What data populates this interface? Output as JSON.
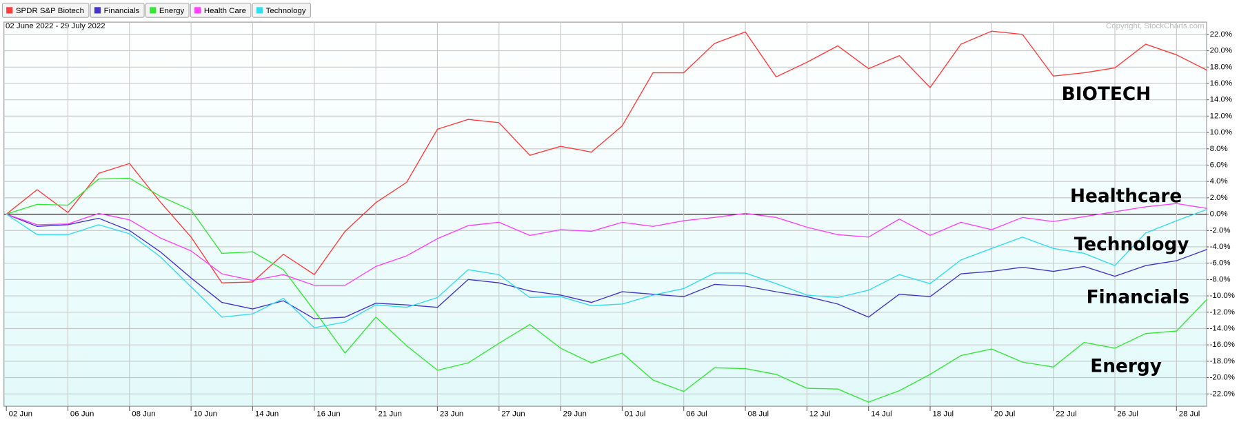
{
  "chart_data": {
    "type": "line",
    "date_range": "02 June 2022 - 29 July 2022",
    "copyright": "Copyright, StockCharts.com",
    "annotations": [
      "BIOTECH",
      "Healthcare",
      "Technology",
      "Financials",
      "Energy"
    ],
    "categories": [
      "02 Jun",
      null,
      "06 Jun",
      null,
      "08 Jun",
      null,
      "10 Jun",
      null,
      "14 Jun",
      null,
      "16 Jun",
      null,
      "21 Jun",
      null,
      "23 Jun",
      null,
      "27 Jun",
      null,
      "29 Jun",
      null,
      "01 Jul",
      null,
      "06 Jul",
      null,
      "08 Jul",
      null,
      "12 Jul",
      null,
      "14 Jul",
      null,
      "18 Jul",
      null,
      "20 Jul",
      null,
      "22 Jul",
      null,
      "26 Jul",
      null,
      "28 Jul",
      null
    ],
    "series": [
      {
        "name": "SPDR S&P Biotech",
        "color": "#ff3b3b",
        "values": [
          0,
          3.0,
          0.2,
          5.0,
          6.2,
          1.5,
          -2.8,
          -8.4,
          -8.3,
          -4.9,
          -7.4,
          -2.1,
          1.4,
          3.9,
          10.4,
          11.6,
          11.2,
          7.2,
          8.3,
          7.6,
          10.8,
          17.3,
          17.3,
          20.9,
          22.3,
          16.8,
          18.6,
          20.6,
          17.8,
          19.4,
          15.5,
          20.8,
          22.4,
          22.0,
          16.9,
          17.3,
          17.9,
          20.8,
          19.5,
          17.6
        ]
      },
      {
        "name": "Financials",
        "color": "#4433cc",
        "values": [
          0,
          -1.5,
          -1.3,
          -0.5,
          -2.0,
          -4.6,
          -7.8,
          -10.8,
          -11.6,
          -10.6,
          -12.8,
          -12.6,
          -10.9,
          -11.1,
          -11.4,
          -8.0,
          -8.4,
          -9.4,
          -9.9,
          -10.8,
          -9.5,
          -9.8,
          -10.1,
          -8.6,
          -8.8,
          -9.5,
          -10.1,
          -11.0,
          -12.6,
          -9.8,
          -10.1,
          -7.3,
          -7.0,
          -6.5,
          -7.0,
          -6.4,
          -7.6,
          -6.3,
          -5.7,
          -4.3
        ]
      },
      {
        "name": "Energy",
        "color": "#33e833",
        "values": [
          0,
          1.2,
          1.1,
          4.3,
          4.4,
          2.2,
          0.5,
          -4.8,
          -4.6,
          -6.8,
          -11.8,
          -17.0,
          -12.6,
          -16.1,
          -19.1,
          -18.2,
          -15.8,
          -13.5,
          -16.4,
          -18.2,
          -17.0,
          -20.3,
          -21.7,
          -18.8,
          -18.9,
          -19.6,
          -21.3,
          -21.4,
          -23.0,
          -21.6,
          -19.6,
          -17.3,
          -16.5,
          -18.1,
          -18.7,
          -15.7,
          -16.4,
          -14.6,
          -14.3,
          -10.4
        ]
      },
      {
        "name": "Health Care",
        "color": "#ff40ff",
        "values": [
          0,
          -1.3,
          -1.2,
          0.1,
          -0.7,
          -2.9,
          -4.5,
          -7.3,
          -8.1,
          -7.4,
          -8.7,
          -8.7,
          -6.4,
          -5.1,
          -3.0,
          -1.4,
          -1.0,
          -2.6,
          -1.9,
          -2.1,
          -1.0,
          -1.5,
          -0.8,
          -0.4,
          0.1,
          -0.4,
          -1.6,
          -2.5,
          -2.8,
          -0.6,
          -2.6,
          -1.0,
          -1.9,
          -0.4,
          -0.9,
          -0.3,
          0.3,
          0.9,
          1.3,
          0.7
        ]
      },
      {
        "name": "Technology",
        "color": "#33dded",
        "values": [
          0,
          -2.5,
          -2.5,
          -1.3,
          -2.4,
          -5.2,
          -8.9,
          -12.6,
          -12.2,
          -10.3,
          -13.9,
          -13.2,
          -11.1,
          -11.4,
          -10.2,
          -6.8,
          -7.4,
          -10.2,
          -10.1,
          -11.2,
          -11.0,
          -9.9,
          -9.1,
          -7.2,
          -7.2,
          -8.5,
          -9.9,
          -10.2,
          -9.3,
          -7.4,
          -8.5,
          -5.6,
          -4.2,
          -2.8,
          -4.2,
          -4.8,
          -6.3,
          -2.3,
          -0.8,
          0.6
        ]
      }
    ],
    "ylim": [
      -23.5,
      23.5
    ],
    "yticks": [
      {
        "value": 22,
        "label": "22.0%"
      },
      {
        "value": 20,
        "label": "20.0%"
      },
      {
        "value": 18,
        "label": "18.0%"
      },
      {
        "value": 16,
        "label": "16.0%"
      },
      {
        "value": 14,
        "label": "14.0%"
      },
      {
        "value": 12,
        "label": "12.0%"
      },
      {
        "value": 10,
        "label": "10.0%"
      },
      {
        "value": 8,
        "label": "8.0%"
      },
      {
        "value": 6,
        "label": "6.0%"
      },
      {
        "value": 4,
        "label": "4.0%"
      },
      {
        "value": 2,
        "label": "2.0%"
      },
      {
        "value": 0,
        "label": "0.0%"
      },
      {
        "value": -2,
        "label": "-2.0%"
      },
      {
        "value": -4,
        "label": "-4.0%"
      },
      {
        "value": -6,
        "label": "-6.0%"
      },
      {
        "value": -8,
        "label": "-8.0%"
      },
      {
        "value": -10,
        "label": "-10.0%"
      },
      {
        "value": -12,
        "label": "-12.0%"
      },
      {
        "value": -14,
        "label": "-14.0%"
      },
      {
        "value": -16,
        "label": "-16.0%"
      },
      {
        "value": -18,
        "label": "-18.0%"
      },
      {
        "value": -20,
        "label": "-20.0%"
      },
      {
        "value": -22,
        "label": "-22.0%"
      }
    ],
    "grid": true,
    "zero_line": true
  }
}
